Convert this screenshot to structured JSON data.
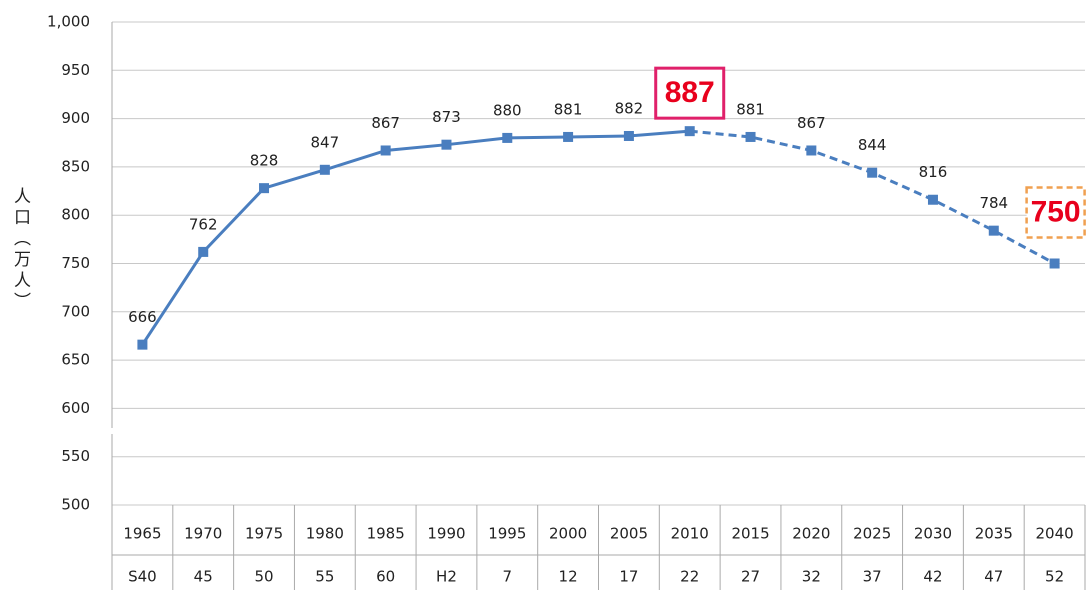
{
  "chart_data": {
    "type": "line",
    "y_label": "人口（万人）",
    "categories": [
      "1965",
      "1970",
      "1975",
      "1980",
      "1985",
      "1990",
      "1995",
      "2000",
      "2005",
      "2010",
      "2015",
      "2020",
      "2025",
      "2030",
      "2035",
      "2040"
    ],
    "era_labels": [
      "S40",
      "45",
      "50",
      "55",
      "60",
      "H2",
      "7",
      "12",
      "17",
      "22",
      "27",
      "32",
      "37",
      "42",
      "47",
      "52"
    ],
    "values": [
      666,
      762,
      828,
      847,
      867,
      873,
      880,
      881,
      882,
      887,
      881,
      867,
      844,
      816,
      784,
      750
    ],
    "color": "#4a7ebf",
    "dash_start": 9,
    "ylim": [
      500,
      1000
    ],
    "yticks": [
      500,
      550,
      600,
      650,
      700,
      750,
      800,
      850,
      900,
      950,
      {
        "value": 1000,
        "label": "1,000"
      }
    ],
    "grid": true
  }
}
